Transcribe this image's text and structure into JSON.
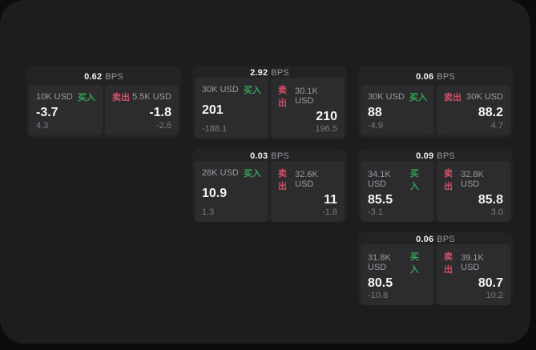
{
  "window": {
    "bg": "#1d1d1f",
    "outer_bg": "#0c0c0d"
  },
  "labels": {
    "buy": "买入",
    "sell": "卖出",
    "bps_unit": "BPS"
  },
  "colors": {
    "buy_green": "#36a159",
    "sell_red": "#d05066",
    "card_bg": "#232325",
    "panel_bg": "#2c2c2e"
  },
  "cards": [
    {
      "bps": "0.62",
      "row": 1,
      "col": 1,
      "buy": {
        "amount": "10K USD",
        "value": "-3.7",
        "sub": "4.3"
      },
      "sell": {
        "amount": "5.5K USD",
        "value": "-1.8",
        "sub": "-2.6"
      }
    },
    {
      "bps": "2.92",
      "row": 1,
      "col": 2,
      "buy": {
        "amount": "30K USD",
        "value": "201",
        "sub": "-188.1"
      },
      "sell": {
        "amount": "30.1K USD",
        "value": "210",
        "sub": "196.5"
      }
    },
    {
      "bps": "0.06",
      "row": 1,
      "col": 3,
      "buy": {
        "amount": "30K USD",
        "value": "88",
        "sub": "-4.9"
      },
      "sell": {
        "amount": "30K USD",
        "value": "88.2",
        "sub": "4.7"
      }
    },
    {
      "bps": "0.03",
      "row": 2,
      "col": 2,
      "buy": {
        "amount": "28K USD",
        "value": "10.9",
        "sub": "1.3"
      },
      "sell": {
        "amount": "32.6K USD",
        "value": "11",
        "sub": "-1.8"
      }
    },
    {
      "bps": "0.09",
      "row": 2,
      "col": 3,
      "buy": {
        "amount": "34.1K USD",
        "value": "85.5",
        "sub": "-3.1"
      },
      "sell": {
        "amount": "32.8K USD",
        "value": "85.8",
        "sub": "3.0"
      }
    },
    {
      "bps": "0.06",
      "row": 3,
      "col": 3,
      "buy": {
        "amount": "31.8K USD",
        "value": "80.5",
        "sub": "-10.8"
      },
      "sell": {
        "amount": "39.1K USD",
        "value": "80.7",
        "sub": "10.2"
      }
    }
  ]
}
